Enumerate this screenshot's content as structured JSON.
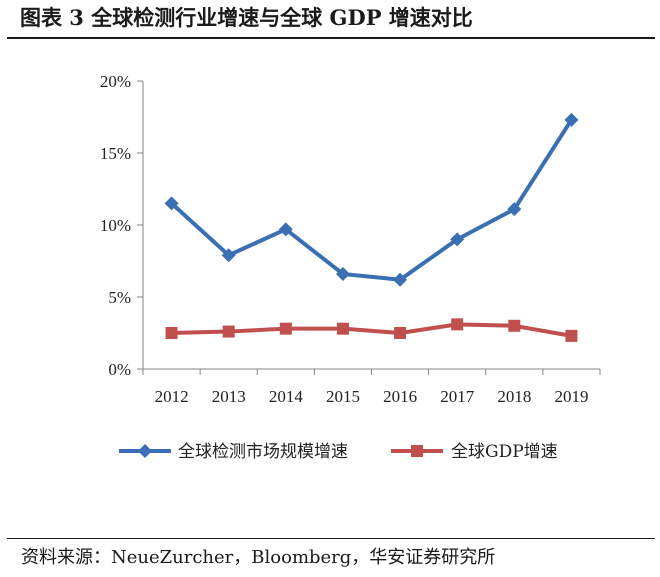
{
  "header": {
    "title": "图表 3  全球检测行业增速与全球 GDP 增速对比"
  },
  "footer": {
    "source": "资料来源：NeueZurcher，Bloomberg，华安证券研究所"
  },
  "chart_data": {
    "type": "line",
    "title": "",
    "xlabel": "",
    "ylabel": "",
    "categories": [
      "2012",
      "2013",
      "2014",
      "2015",
      "2016",
      "2017",
      "2018",
      "2019"
    ],
    "ylim": [
      0,
      20
    ],
    "yticks": [
      0,
      5,
      10,
      15,
      20
    ],
    "ytick_labels": [
      "0%",
      "5%",
      "10%",
      "15%",
      "20%"
    ],
    "grid": false,
    "legend_position": "bottom",
    "series": [
      {
        "name": "全球检测市场规模增速",
        "color": "#3a6fb4",
        "marker": "diamond",
        "values": [
          11.5,
          7.9,
          9.7,
          6.6,
          6.2,
          9.0,
          11.1,
          17.3
        ]
      },
      {
        "name": "全球GDP增速",
        "color": "#c0504d",
        "marker": "square",
        "values": [
          2.5,
          2.6,
          2.8,
          2.8,
          2.5,
          3.1,
          3.0,
          2.3
        ]
      }
    ]
  }
}
